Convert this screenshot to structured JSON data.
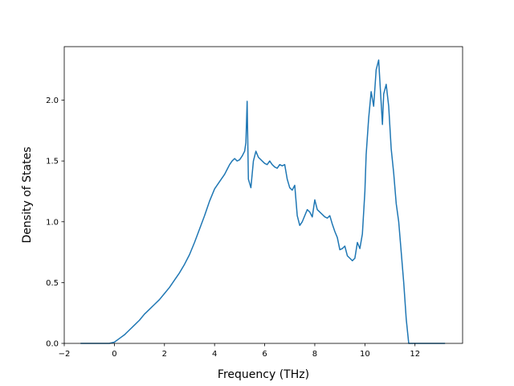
{
  "chart_data": {
    "type": "line",
    "title": "",
    "xlabel": "Frequency (THz)",
    "ylabel": "Density of States",
    "xlim": [
      -2.0,
      13.9
    ],
    "ylim": [
      0.0,
      2.44
    ],
    "grid": false,
    "xticks": [
      -2,
      0,
      2,
      4,
      6,
      8,
      10,
      12
    ],
    "xtick_labels": [
      "−2",
      "0",
      "2",
      "4",
      "6",
      "8",
      "10",
      "12"
    ],
    "yticks": [
      0.0,
      0.5,
      1.0,
      1.5,
      2.0
    ],
    "ytick_labels": [
      "0.0",
      "0.5",
      "1.0",
      "1.5",
      "2.0"
    ],
    "series": [
      {
        "color": "#1f77b4",
        "x": [
          -1.35,
          -0.2,
          0.0,
          0.2,
          0.4,
          0.6,
          0.8,
          1.0,
          1.2,
          1.4,
          1.6,
          1.8,
          2.0,
          2.2,
          2.4,
          2.6,
          2.8,
          3.0,
          3.2,
          3.4,
          3.6,
          3.8,
          4.0,
          4.2,
          4.4,
          4.5,
          4.6,
          4.7,
          4.8,
          4.9,
          5.0,
          5.1,
          5.2,
          5.25,
          5.3,
          5.35,
          5.45,
          5.55,
          5.65,
          5.75,
          5.9,
          6.0,
          6.1,
          6.2,
          6.3,
          6.4,
          6.5,
          6.6,
          6.7,
          6.8,
          6.9,
          7.0,
          7.1,
          7.2,
          7.3,
          7.4,
          7.5,
          7.6,
          7.7,
          7.8,
          7.9,
          8.0,
          8.1,
          8.2,
          8.3,
          8.4,
          8.5,
          8.6,
          8.7,
          8.8,
          8.9,
          9.0,
          9.1,
          9.2,
          9.3,
          9.4,
          9.5,
          9.6,
          9.7,
          9.8,
          9.9,
          10.0,
          10.05,
          10.15,
          10.25,
          10.35,
          10.45,
          10.55,
          10.6,
          10.7,
          10.75,
          10.85,
          10.95,
          11.05,
          11.15,
          11.25,
          11.35,
          11.45,
          11.55,
          11.65,
          11.75,
          11.85,
          11.95,
          12.0,
          13.2
        ],
        "y": [
          0.0,
          0.0,
          0.01,
          0.04,
          0.07,
          0.11,
          0.15,
          0.19,
          0.24,
          0.28,
          0.32,
          0.36,
          0.41,
          0.46,
          0.52,
          0.58,
          0.65,
          0.73,
          0.83,
          0.94,
          1.05,
          1.17,
          1.27,
          1.33,
          1.39,
          1.43,
          1.47,
          1.5,
          1.52,
          1.5,
          1.51,
          1.54,
          1.58,
          1.65,
          1.99,
          1.35,
          1.28,
          1.5,
          1.58,
          1.53,
          1.5,
          1.48,
          1.47,
          1.5,
          1.47,
          1.45,
          1.44,
          1.47,
          1.46,
          1.47,
          1.35,
          1.28,
          1.26,
          1.3,
          1.05,
          0.97,
          1.0,
          1.05,
          1.1,
          1.08,
          1.04,
          1.18,
          1.1,
          1.08,
          1.06,
          1.04,
          1.03,
          1.05,
          0.98,
          0.92,
          0.87,
          0.77,
          0.78,
          0.8,
          0.72,
          0.7,
          0.68,
          0.7,
          0.83,
          0.78,
          0.9,
          1.25,
          1.55,
          1.85,
          2.07,
          1.95,
          2.25,
          2.33,
          2.15,
          1.8,
          2.05,
          2.13,
          1.95,
          1.6,
          1.4,
          1.15,
          1.0,
          0.75,
          0.5,
          0.2,
          0.0,
          0.0,
          0.0,
          0.0,
          0.0
        ]
      }
    ]
  }
}
